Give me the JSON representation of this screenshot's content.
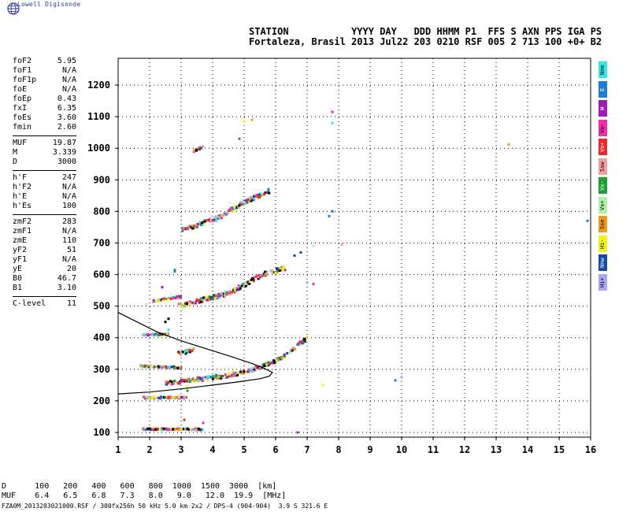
{
  "brand": {
    "name": "Lowell Digisonde"
  },
  "header": {
    "labels": [
      "STATION",
      "YYYY",
      "DAY",
      "DDD",
      "HHMM",
      "P1",
      "FFS",
      "S",
      "AXN",
      "PPS",
      "IGA",
      "PS"
    ],
    "values": [
      "Fortaleza, Brasil",
      "2013",
      "Jul22",
      "203",
      "0210",
      "RSF",
      "005",
      "2",
      "713",
      "100",
      "+0+",
      "B2"
    ]
  },
  "params": {
    "group1": [
      {
        "label": "foF2",
        "value": "5.95"
      },
      {
        "label": "foF1",
        "value": "N/A"
      },
      {
        "label": "foF1p",
        "value": "N/A"
      },
      {
        "label": "foE",
        "value": "N/A"
      },
      {
        "label": "foEp",
        "value": "0.43"
      },
      {
        "label": "fxI",
        "value": "6.35"
      },
      {
        "label": "foEs",
        "value": "3.60"
      },
      {
        "label": "fmin",
        "value": "2.60"
      }
    ],
    "group2": [
      {
        "label": "MUF",
        "value": "19.87"
      },
      {
        "label": "M",
        "value": "3.339"
      },
      {
        "label": "D",
        "value": "3000"
      }
    ],
    "group3": [
      {
        "label": "h'F",
        "value": "247"
      },
      {
        "label": "h'F2",
        "value": "N/A"
      },
      {
        "label": "h'E",
        "value": "N/A"
      },
      {
        "label": "h'Es",
        "value": "100"
      }
    ],
    "group4": [
      {
        "label": "zmF2",
        "value": "283"
      },
      {
        "label": "zmF1",
        "value": "N/A"
      },
      {
        "label": "zmE",
        "value": "110"
      },
      {
        "label": "yF2",
        "value": "51"
      },
      {
        "label": "yF1",
        "value": "N/A"
      },
      {
        "label": "yE",
        "value": "20"
      },
      {
        "label": "B0",
        "value": "46.7"
      },
      {
        "label": "B1",
        "value": "3.10"
      }
    ],
    "group5": [
      {
        "label": "C-level",
        "value": "11"
      }
    ]
  },
  "legend": [
    {
      "label": "Nne",
      "color": "#33e6e6"
    },
    {
      "label": "E",
      "color": "#1e7fd8"
    },
    {
      "label": "W",
      "color": "#9a1fb0"
    },
    {
      "label": "Vo-",
      "color": "#ee2fa8"
    },
    {
      "label": "Vo+",
      "color": "#e82a2a"
    },
    {
      "label": "Ssw",
      "color": "#f2a0a0"
    },
    {
      "label": "Vx-",
      "color": "#1f9e35"
    },
    {
      "label": "Vx+",
      "color": "#b0f0a8"
    },
    {
      "label": "Sse",
      "color": "#f29a1a"
    },
    {
      "label": "Hi-",
      "color": "#f4f21e"
    },
    {
      "label": "Nnw",
      "color": "#1848a8"
    },
    {
      "label": "Hi+",
      "color": "#a8a8f0"
    }
  ],
  "footer": {
    "d_label": "D",
    "d_values": [
      "100",
      "200",
      "400",
      "600",
      "800",
      "1000",
      "1500",
      "3000"
    ],
    "d_unit": "[km]",
    "muf_label": "MUF",
    "muf_values": [
      "6.4",
      "6.5",
      "6.8",
      "7.3",
      "8.0",
      "9.0",
      "12.0",
      "19.9"
    ],
    "muf_unit": "[MHz]",
    "filename": "FZA0M_2013203021000.RSF / 300fx256h 50 kHz 5.0 km 2x2 / DPS-4 (904-904)  3.9 S 321.6 E"
  },
  "chart_data": {
    "type": "scatter",
    "xlabel": "",
    "ylabel": "",
    "xlim": [
      1,
      16
    ],
    "ylim": [
      85,
      1285
    ],
    "x_ticks": [
      1,
      2,
      3,
      4,
      5,
      6,
      7,
      8,
      9,
      10,
      11,
      12,
      13,
      14,
      15,
      16
    ],
    "y_ticks": [
      100,
      200,
      300,
      400,
      500,
      600,
      700,
      800,
      900,
      1000,
      1100,
      1200
    ],
    "grid": true,
    "traces": [
      {
        "name": "Es",
        "segments": [
          [
            1.8,
            110,
            3.7,
            110
          ],
          [
            1.8,
            210,
            3.2,
            210
          ],
          [
            1.7,
            310,
            3.0,
            305
          ],
          [
            1.8,
            410,
            2.6,
            410
          ]
        ],
        "spread": 5
      },
      {
        "name": "Es-2",
        "segments": [
          [
            2.1,
            515,
            3.0,
            530
          ]
        ],
        "spread": 6
      },
      {
        "name": "F",
        "segments": [
          [
            2.5,
            255,
            4.5,
            280
          ],
          [
            4.5,
            280,
            5.5,
            305
          ],
          [
            5.5,
            305,
            6.2,
            335
          ],
          [
            6.2,
            335,
            7.0,
            400
          ],
          [
            2.9,
            350,
            3.4,
            360
          ]
        ],
        "spread": 12
      },
      {
        "name": "F2-2",
        "segments": [
          [
            2.9,
            500,
            4.5,
            540
          ],
          [
            4.5,
            540,
            5.6,
            600
          ],
          [
            5.6,
            600,
            6.3,
            620
          ]
        ],
        "spread": 14
      },
      {
        "name": "F2-3",
        "segments": [
          [
            3.0,
            740,
            4.2,
            780
          ],
          [
            4.2,
            780,
            5.0,
            830
          ],
          [
            5.0,
            830,
            5.8,
            865
          ]
        ],
        "spread": 14
      },
      {
        "name": "F2-4",
        "segments": [
          [
            3.4,
            990,
            3.7,
            1005
          ]
        ],
        "spread": 6
      }
    ],
    "points": [
      [
        5.25,
        1090
      ],
      [
        5.0,
        1085
      ],
      [
        4.85,
        1030
      ],
      [
        7.8,
        1115
      ],
      [
        7.8,
        1080
      ],
      [
        7.7,
        785
      ],
      [
        7.8,
        800
      ],
      [
        8.1,
        695
      ],
      [
        7.2,
        690
      ],
      [
        13.4,
        1012
      ],
      [
        2.8,
        610
      ],
      [
        2.8,
        615
      ],
      [
        7.2,
        570
      ],
      [
        6.6,
        660
      ],
      [
        6.8,
        670
      ],
      [
        2.4,
        560
      ],
      [
        2.6,
        460
      ],
      [
        2.5,
        450
      ],
      [
        1.9,
        505
      ],
      [
        7.0,
        575
      ],
      [
        15.9,
        770
      ],
      [
        10.0,
        275
      ],
      [
        9.8,
        265
      ],
      [
        7.5,
        250
      ],
      [
        6.7,
        100
      ],
      [
        2.6,
        425
      ],
      [
        3.2,
        245
      ],
      [
        3.2,
        232
      ],
      [
        3.7,
        130
      ],
      [
        3.1,
        140
      ]
    ],
    "model_curve": [
      [
        1.0,
        480
      ],
      [
        1.6,
        450
      ],
      [
        2.2,
        420
      ],
      [
        3.0,
        390
      ],
      [
        3.8,
        365
      ],
      [
        4.6,
        340
      ],
      [
        5.2,
        320
      ],
      [
        5.6,
        305
      ],
      [
        5.9,
        290
      ],
      [
        5.8,
        278
      ],
      [
        5.5,
        270
      ],
      [
        4.8,
        260
      ],
      [
        4.0,
        250
      ],
      [
        3.0,
        238
      ],
      [
        2.0,
        228
      ],
      [
        1.0,
        222
      ]
    ]
  }
}
